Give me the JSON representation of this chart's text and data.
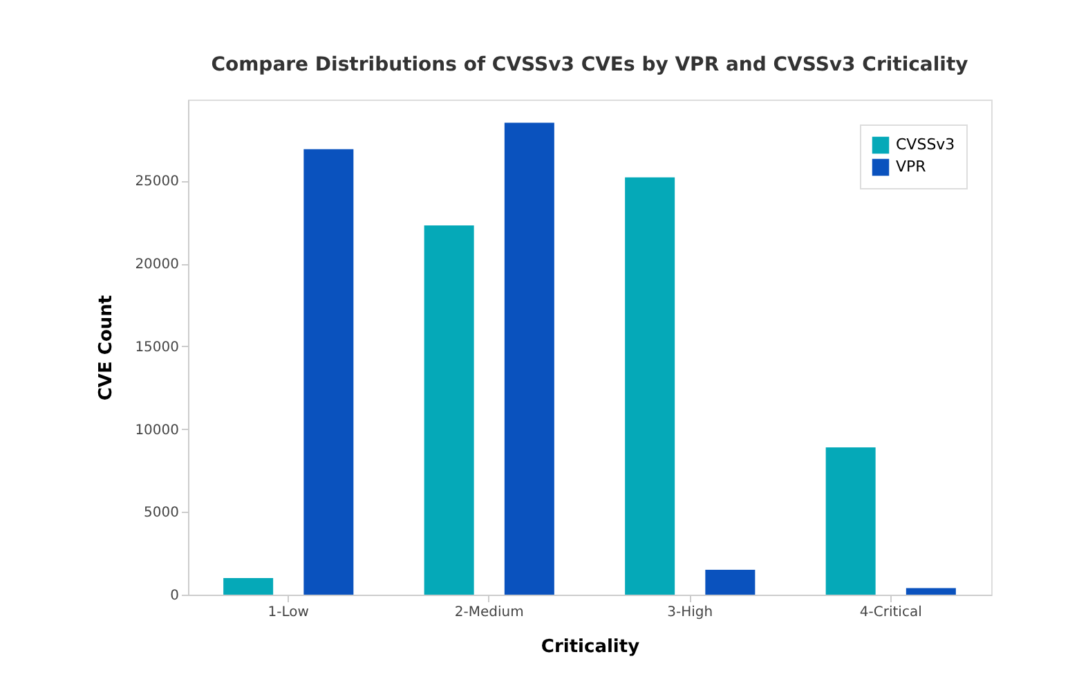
{
  "chart_data": {
    "type": "bar",
    "title": "Compare Distributions of CVSSv3 CVEs by VPR and CVSSv3 Criticality",
    "xlabel": "Criticality",
    "ylabel": "CVE Count",
    "categories": [
      "1-Low",
      "2-Medium",
      "3-High",
      "4-Critical"
    ],
    "series": [
      {
        "name": "CVSSv3",
        "color": "#05a9b8",
        "values": [
          1000,
          22300,
          25200,
          8900
        ]
      },
      {
        "name": "VPR",
        "color": "#0a52be",
        "values": [
          26900,
          28500,
          1500,
          400
        ]
      }
    ],
    "ylim": [
      0,
      29900
    ],
    "yticks": [
      0,
      5000,
      10000,
      15000,
      20000,
      25000
    ],
    "grid": false,
    "legend": "top right"
  }
}
